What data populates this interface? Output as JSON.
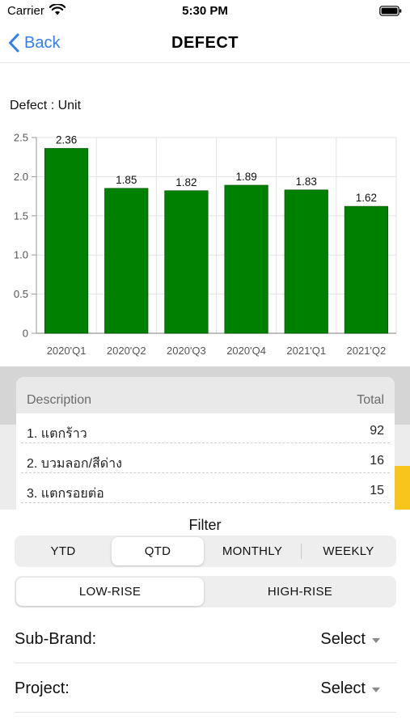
{
  "status_bar": {
    "carrier": "Carrier",
    "time": "5:30 PM"
  },
  "nav": {
    "back_label": "Back",
    "title": "DEFECT",
    "accent_color": "#2f7ff7"
  },
  "chart_title": "Defect : Unit",
  "chart_data": {
    "type": "bar",
    "categories": [
      "2020'Q1",
      "2020'Q2",
      "2020'Q3",
      "2020'Q4",
      "2021'Q1",
      "2021'Q2"
    ],
    "values": [
      2.36,
      1.85,
      1.82,
      1.89,
      1.83,
      1.62
    ],
    "value_labels": [
      "2.36",
      "1.85",
      "1.82",
      "1.89",
      "1.83",
      "1.62"
    ],
    "yticks": [
      "0",
      "0.5",
      "1.0",
      "1.5",
      "2.0",
      "2.5"
    ],
    "ylim": [
      0,
      2.5
    ],
    "bar_color": "#008000",
    "grid": true
  },
  "table": {
    "header_description": "Description",
    "header_total": "Total",
    "rows": [
      {
        "description": "1. แตกร้าว",
        "total": "92"
      },
      {
        "description": "2. บวมลอก/สีด่าง",
        "total": "16"
      },
      {
        "description": "3. แตกรอยต่อ",
        "total": "15"
      }
    ]
  },
  "filter": {
    "title": "Filter",
    "periods": [
      "YTD",
      "QTD",
      "MONTHLY",
      "WEEKLY"
    ],
    "selected_period": "QTD",
    "types": [
      "LOW-RISE",
      "HIGH-RISE"
    ],
    "selected_type": "LOW-RISE",
    "sub_brand": {
      "label": "Sub-Brand:",
      "value": "Select"
    },
    "project": {
      "label": "Project:",
      "value": "Select"
    }
  }
}
